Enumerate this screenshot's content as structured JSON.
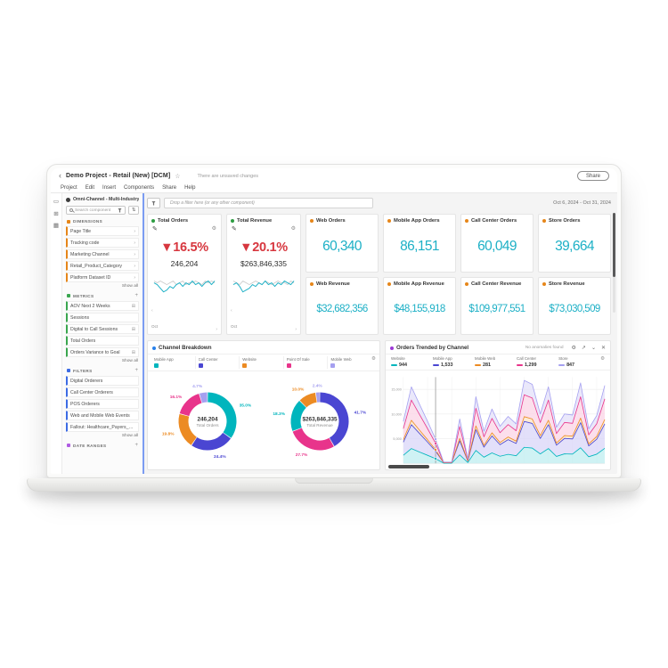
{
  "icons": {
    "back": "‹",
    "star": "☆",
    "gear": "⚙",
    "pencil": "✎",
    "sort": "⇅",
    "chevron_right": "›",
    "chevron_down": "⌄",
    "close": "✕",
    "expand": "↗",
    "plus": "+",
    "badge": "⊞",
    "arrow_left": "‹",
    "arrow_right": "›",
    "rail_panels": "▭",
    "rail_tables": "⊞",
    "rail_visualizations": "▦"
  },
  "window": {
    "title": "Demo Project - Retail (New) [DCM]",
    "unsaved": "There are unsaved changes",
    "share_label": "Share",
    "menu": [
      "Project",
      "Edit",
      "Insert",
      "Components",
      "Share",
      "Help"
    ],
    "date_range": "Oct 6, 2024 - Oct 31, 2024",
    "drop_zone": "Drop a filter here (or any other component)"
  },
  "sidebar": {
    "dataset": "Omni-Channel - Multi-Industry",
    "search_placeholder": "Search component",
    "show_all": "Show all",
    "sections": [
      {
        "label": "DIMENSIONS",
        "color": "#e68619",
        "plus": false,
        "show_all": true,
        "items": [
          {
            "label": "Page Title",
            "right": "chevron"
          },
          {
            "label": "Tracking code",
            "right": "chevron"
          },
          {
            "label": "Marketing Channel",
            "right": "chevron"
          },
          {
            "label": "Retail_Product_Category",
            "right": "chevron"
          },
          {
            "label": "Platform Dataset ID",
            "right": "chevron"
          }
        ]
      },
      {
        "label": "METRICS",
        "color": "#3aa64f",
        "plus": true,
        "show_all": true,
        "items": [
          {
            "label": "AOV Next 2 Weeks",
            "right": "badge"
          },
          {
            "label": "Sessions",
            "right": null
          },
          {
            "label": "Digital to Call Sessions",
            "right": "badge"
          },
          {
            "label": "Total Orders",
            "right": null
          },
          {
            "label": "Orders Variance to Goal",
            "right": "badge"
          }
        ]
      },
      {
        "label": "FILTERS",
        "color": "#3c6be4",
        "plus": true,
        "show_all": true,
        "items": [
          {
            "label": "Digital Orderers",
            "right": null
          },
          {
            "label": "Call Center Orderers",
            "right": null
          },
          {
            "label": "POS Orderers",
            "right": null
          },
          {
            "label": "Web and Mobile Web Events",
            "right": null
          },
          {
            "label": "Fallout: Healthcare_Payers_Pa...",
            "right": null
          }
        ]
      },
      {
        "label": "DATE RANGES",
        "color": "#b05ce3",
        "plus": true,
        "show_all": false,
        "items": []
      }
    ]
  },
  "cards": {
    "total_orders": {
      "title": "Total Orders",
      "dot_color": "#2d9d42",
      "change": "▼16.5%",
      "value": "246,204",
      "axis_label": "Oct",
      "spark_current": [
        6,
        5,
        3,
        1,
        2,
        4,
        3,
        5,
        6,
        4,
        6,
        5,
        7,
        5,
        6,
        4,
        6,
        7,
        5,
        7
      ],
      "spark_previous": [
        7,
        6,
        7,
        6,
        5,
        6,
        7,
        5,
        6,
        7,
        5,
        6,
        6,
        7,
        6,
        5,
        7,
        6,
        7,
        6
      ]
    },
    "total_revenue": {
      "title": "Total Revenue",
      "dot_color": "#2d9d42",
      "change": "▼20.1%",
      "value": "$263,846,335",
      "axis_label": "Oct",
      "spark_current": [
        5,
        6,
        4,
        1,
        2,
        3,
        5,
        4,
        6,
        5,
        7,
        5,
        6,
        4,
        6,
        5,
        7,
        6,
        5,
        7
      ],
      "spark_previous": [
        7,
        6,
        5,
        7,
        6,
        5,
        6,
        7,
        6,
        5,
        7,
        6,
        5,
        6,
        7,
        6,
        6,
        5,
        7,
        6
      ]
    }
  },
  "kpis": [
    {
      "label": "Web Orders",
      "value": "60,340",
      "money": false
    },
    {
      "label": "Mobile App Orders",
      "value": "86,151",
      "money": false
    },
    {
      "label": "Call Center Orders",
      "value": "60,049",
      "money": false
    },
    {
      "label": "Store Orders",
      "value": "39,664",
      "money": false
    },
    {
      "label": "Web Revenue",
      "value": "$32,682,356",
      "money": true
    },
    {
      "label": "Mobile App Revenue",
      "value": "$48,155,918",
      "money": true
    },
    {
      "label": "Call Center Revenue",
      "value": "$109,977,551",
      "money": true
    },
    {
      "label": "Store Revenue",
      "value": "$73,030,509",
      "money": true
    }
  ],
  "kpi_dot_color": "#e68619",
  "breakdown": {
    "title": "Channel Breakdown",
    "dot_color": "#2680eb",
    "legend": [
      {
        "label": "Mobile App",
        "color": "#00b5bd"
      },
      {
        "label": "Call Center",
        "color": "#4a46d2"
      },
      {
        "label": "Website",
        "color": "#ec8b23"
      },
      {
        "label": "Point Of Sale",
        "color": "#e8348b"
      },
      {
        "label": "Mobile Web",
        "color": "#a5a0f0"
      }
    ]
  },
  "trended": {
    "title": "Orders Trended by Channel",
    "dot_color": "#9c38d6",
    "note": "No anomalies found",
    "legend": [
      {
        "label": "Website",
        "value": "944",
        "color": "#00b5bd"
      },
      {
        "label": "Mobile App",
        "value": "1,533",
        "color": "#4a46d2"
      },
      {
        "label": "Mobile Web",
        "value": "281",
        "color": "#ec8b23"
      },
      {
        "label": "Call Center",
        "value": "1,299",
        "color": "#e8348b"
      },
      {
        "label": "Store",
        "value": "847",
        "color": "#a5a0f0"
      }
    ]
  },
  "chart_data": [
    {
      "type": "pie",
      "title": "Total Orders donut",
      "center_value": "246,204",
      "center_label": "Total Orders",
      "slices": [
        {
          "label": "Mobile App",
          "pct": 35.0,
          "color": "#00b5bd"
        },
        {
          "label": "Call Center",
          "pct": 24.4,
          "color": "#4a46d2"
        },
        {
          "label": "Website",
          "pct": 19.8,
          "color": "#ec8b23"
        },
        {
          "label": "Point Of Sale",
          "pct": 16.1,
          "color": "#e8348b"
        },
        {
          "label": "Mobile Web",
          "pct": 4.7,
          "color": "#a5a0f0"
        }
      ]
    },
    {
      "type": "pie",
      "title": "Total Revenue donut",
      "center_value": "$263,846,335",
      "center_label": "Total Revenue",
      "slices": [
        {
          "label": "Call Center",
          "pct": 41.7,
          "color": "#4a46d2"
        },
        {
          "label": "Point Of Sale",
          "pct": 27.7,
          "color": "#e8348b"
        },
        {
          "label": "Mobile App",
          "pct": 18.3,
          "color": "#00b5bd"
        },
        {
          "label": "Website",
          "pct": 10.0,
          "color": "#ec8b23"
        },
        {
          "label": "Mobile Web",
          "pct": 2.4,
          "color": "#a5a0f0"
        }
      ]
    },
    {
      "type": "area",
      "title": "Orders Trended by Channel",
      "x_count": 26,
      "ylim": [
        0,
        17500
      ],
      "yticks": [
        {
          "value": 5000,
          "label": "5,000"
        },
        {
          "value": 10000,
          "label": "10,000"
        },
        {
          "value": 15000,
          "label": "15,000"
        }
      ],
      "cursor_index": 4,
      "stack_order": [
        "Website",
        "Mobile App",
        "Mobile Web",
        "Call Center",
        "Store"
      ],
      "series": [
        {
          "name": "Website",
          "color": "#00b5bd",
          "fill": "#bfeef0",
          "values": [
            1641,
            2992,
            2316,
            1641,
            944,
            48,
            48,
            1737,
            174,
            2606,
            1255,
            2123,
            1448,
            1834,
            1544,
            3242,
            3088,
            1930,
            2992,
            1409,
            1930,
            1891,
            3146,
            1351,
            1872,
            3049
          ]
        },
        {
          "name": "Mobile App",
          "color": "#4a46d2",
          "fill": "#d9d6f8",
          "values": [
            2661,
            4852,
            3756,
            2661,
            1533,
            78,
            78,
            2817,
            282,
            4226,
            2035,
            3443,
            2348,
            2974,
            2504,
            5258,
            5008,
            3130,
            4852,
            2285,
            3130,
            3067,
            5102,
            2191,
            3036,
            4945
          ]
        },
        {
          "name": "Mobile Web",
          "color": "#ec8b23",
          "fill": "#fbe3c4",
          "values": [
            485,
            884,
            684,
            485,
            281,
            14,
            14,
            513,
            51,
            770,
            371,
            627,
            428,
            542,
            456,
            958,
            912,
            570,
            884,
            416,
            570,
            559,
            929,
            399,
            553,
            901
          ]
        },
        {
          "name": "Call Center",
          "color": "#e8348b",
          "fill": "#fbd4e5",
          "values": [
            2253,
            4108,
            3180,
            2253,
            1299,
            66,
            66,
            2385,
            239,
            3578,
            1723,
            2915,
            1988,
            2518,
            2120,
            4452,
            4240,
            2650,
            4108,
            1935,
            2650,
            2597,
            4320,
            1855,
            2571,
            4187
          ]
        },
        {
          "name": "Store",
          "color": "#a5a0f0",
          "fill": "#e3e0fa",
          "values": [
            1471,
            2682,
            2076,
            1471,
            847,
            43,
            43,
            1557,
            156,
            2336,
            1125,
            1903,
            1298,
            1644,
            1384,
            2906,
            2768,
            1730,
            2682,
            1263,
            1730,
            1695,
            2820,
            1211,
            1678,
            2733
          ]
        }
      ]
    }
  ]
}
